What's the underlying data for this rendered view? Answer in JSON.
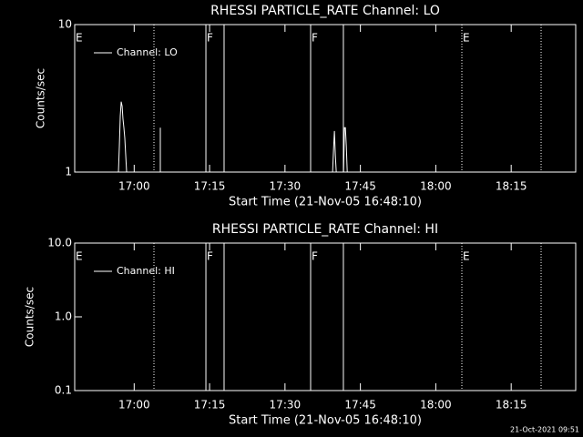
{
  "chart_data": [
    {
      "type": "line",
      "title": "RHESSI PARTICLE_RATE Channel: LO",
      "x_label": "Start Time (21-Nov-05 16:48:10)",
      "y_label": "Counts/sec",
      "log_y": true,
      "ylim": [
        1,
        10
      ],
      "yticks": [
        1,
        10
      ],
      "xlim": [
        0,
        5980
      ],
      "xticks": [
        {
          "value": 710,
          "label": "17:00"
        },
        {
          "value": 1610,
          "label": "17:15"
        },
        {
          "value": 2510,
          "label": "17:30"
        },
        {
          "value": 3410,
          "label": "17:45"
        },
        {
          "value": 4310,
          "label": "18:00"
        },
        {
          "value": 5210,
          "label": "18:15"
        }
      ],
      "series": [
        {
          "name": "Channel: LO",
          "color": "#ffffff",
          "x": [
            522,
            533,
            544,
            555,
            566,
            576,
            587,
            598,
            609,
            620,
            null,
            1022,
            1022,
            null,
            3078,
            3089,
            3100,
            3111,
            3122,
            null,
            3209,
            3220,
            3231,
            3242,
            3253
          ],
          "values": [
            1,
            1.5,
            2.4,
            3,
            2.8,
            2.3,
            2,
            1.7,
            1.3,
            1,
            null,
            1,
            2,
            null,
            1,
            1.4,
            1.9,
            1.3,
            1,
            null,
            1,
            2,
            2,
            1.5,
            1
          ]
        }
      ],
      "markers": [
        {
          "x": 946,
          "style": "dotted"
        },
        {
          "x": 1566,
          "style": "solid"
        },
        {
          "x": 1783,
          "style": "solid"
        },
        {
          "x": 2816,
          "style": "solid"
        },
        {
          "x": 3207,
          "style": "solid"
        },
        {
          "x": 4621,
          "style": "dotted"
        },
        {
          "x": 5567,
          "style": "dotted"
        }
      ],
      "flags": [
        {
          "x": 0,
          "label": "E"
        },
        {
          "x": 1566,
          "label": "F"
        },
        {
          "x": 2816,
          "label": "F"
        },
        {
          "x": 4621,
          "label": "E"
        }
      ]
    },
    {
      "type": "line",
      "title": "RHESSI PARTICLE_RATE Channel: HI",
      "x_label": "Start Time (21-Nov-05 16:48:10)",
      "y_label": "Counts/sec",
      "log_y": true,
      "ylim": [
        0.1,
        10
      ],
      "yticks": [
        0.1,
        {
          "value": 1,
          "label": "1.0"
        },
        {
          "value": 10,
          "label": "10.0"
        }
      ],
      "xlim": [
        0,
        5980
      ],
      "xticks": [
        {
          "value": 710,
          "label": "17:00"
        },
        {
          "value": 1610,
          "label": "17:15"
        },
        {
          "value": 2510,
          "label": "17:30"
        },
        {
          "value": 3410,
          "label": "17:45"
        },
        {
          "value": 4310,
          "label": "18:00"
        },
        {
          "value": 5210,
          "label": "18:15"
        }
      ],
      "series": [
        {
          "name": "Channel: HI",
          "color": "#ffffff",
          "x": [],
          "values": []
        }
      ],
      "markers": [
        {
          "x": 946,
          "style": "dotted"
        },
        {
          "x": 1566,
          "style": "solid"
        },
        {
          "x": 1783,
          "style": "solid"
        },
        {
          "x": 2816,
          "style": "solid"
        },
        {
          "x": 3207,
          "style": "solid"
        },
        {
          "x": 4621,
          "style": "dotted"
        },
        {
          "x": 5567,
          "style": "dotted"
        }
      ],
      "flags": [
        {
          "x": 0,
          "label": "E"
        },
        {
          "x": 1566,
          "label": "F"
        },
        {
          "x": 2816,
          "label": "F"
        },
        {
          "x": 4621,
          "label": "E"
        }
      ]
    }
  ],
  "footer": "21-Oct-2021 09:51"
}
